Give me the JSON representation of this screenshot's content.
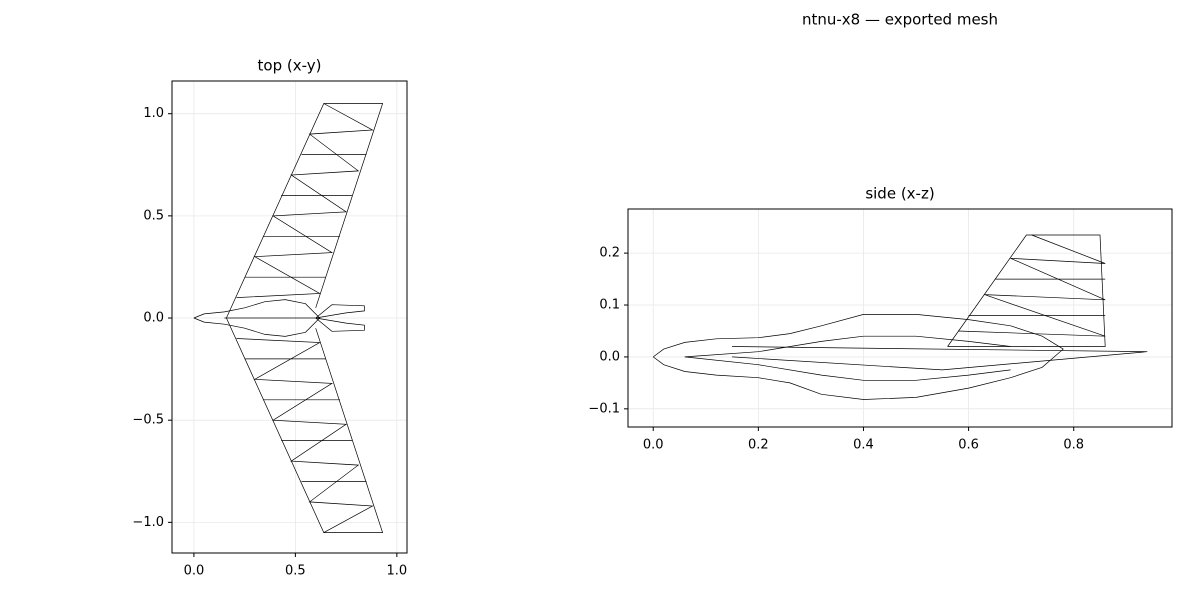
{
  "title": "ntnu-x8 — exported mesh",
  "chart_data": [
    {
      "type": "wireframe",
      "title": "top (x-y)",
      "grid": true,
      "color": "#000000",
      "xlim": [
        -0.108,
        1.05
      ],
      "ylim": [
        -1.15,
        1.16
      ],
      "xticks": [
        {
          "value": 0,
          "label": "0.0"
        },
        {
          "value": 0.5,
          "label": "0.5"
        },
        {
          "value": 1,
          "label": "1.0"
        }
      ],
      "yticks": [
        {
          "value": -1,
          "label": "−1.0"
        },
        {
          "value": -0.5,
          "label": "−0.5"
        },
        {
          "value": 0,
          "label": "0.0"
        },
        {
          "value": 0.5,
          "label": "0.5"
        },
        {
          "value": 1,
          "label": "1.0"
        }
      ],
      "lines": [
        {
          "x": [
            0.16,
            0.64,
            0.93,
            0.6
          ],
          "y": [
            0.0,
            1.05,
            1.05,
            0.05
          ]
        },
        {
          "x": [
            0.16,
            0.64,
            0.93,
            0.6
          ],
          "y": [
            0.0,
            -1.05,
            -1.05,
            -0.05
          ]
        },
        {
          "x": [
            0.25,
            0.65
          ],
          "y": [
            0.2,
            0.2
          ]
        },
        {
          "x": [
            0.34,
            0.72
          ],
          "y": [
            0.4,
            0.4
          ]
        },
        {
          "x": [
            0.43,
            0.78
          ],
          "y": [
            0.6,
            0.6
          ]
        },
        {
          "x": [
            0.53,
            0.85
          ],
          "y": [
            0.8,
            0.8
          ]
        },
        {
          "x": [
            0.25,
            0.65
          ],
          "y": [
            -0.2,
            -0.2
          ]
        },
        {
          "x": [
            0.34,
            0.72
          ],
          "y": [
            -0.4,
            -0.4
          ]
        },
        {
          "x": [
            0.43,
            0.78
          ],
          "y": [
            -0.6,
            -0.6
          ]
        },
        {
          "x": [
            0.53,
            0.85
          ],
          "y": [
            -0.8,
            -0.8
          ]
        },
        {
          "x": [
            0.21,
            0.62,
            0.3,
            0.68,
            0.39,
            0.75,
            0.48,
            0.81,
            0.57,
            0.88,
            0.64
          ],
          "y": [
            0.1,
            0.12,
            0.3,
            0.32,
            0.5,
            0.52,
            0.7,
            0.72,
            0.9,
            0.92,
            1.05
          ]
        },
        {
          "x": [
            0.21,
            0.62,
            0.3,
            0.68,
            0.39,
            0.75,
            0.48,
            0.81,
            0.57,
            0.88,
            0.64
          ],
          "y": [
            -0.1,
            -0.12,
            -0.3,
            -0.32,
            -0.5,
            -0.52,
            -0.7,
            -0.72,
            -0.9,
            -0.92,
            -1.05
          ]
        },
        {
          "x": [
            0,
            0.05,
            0.15,
            0.25,
            0.35,
            0.45,
            0.55,
            0.62,
            0.55,
            0.45,
            0.35,
            0.25,
            0.15,
            0.05,
            0
          ],
          "y": [
            0,
            0.02,
            0.03,
            0.05,
            0.08,
            0.09,
            0.07,
            0.0,
            -0.07,
            -0.09,
            -0.08,
            -0.05,
            -0.03,
            -0.02,
            0
          ]
        },
        {
          "x": [
            0.15,
            0.62
          ],
          "y": [
            0.0,
            0.0
          ]
        },
        {
          "x": [
            0.6,
            0.68,
            0.84,
            0.84,
            0.75,
            0.6
          ],
          "y": [
            0.0,
            0.065,
            0.06,
            0.035,
            0.025,
            0.0
          ]
        },
        {
          "x": [
            0.6,
            0.68,
            0.84,
            0.84,
            0.75,
            0.6
          ],
          "y": [
            0.0,
            -0.065,
            -0.06,
            -0.035,
            -0.025,
            0.0
          ]
        }
      ]
    },
    {
      "type": "wireframe",
      "title": "side (x-z)",
      "grid": true,
      "color": "#000000",
      "xlim": [
        -0.048,
        0.987
      ],
      "ylim": [
        -0.135,
        0.285
      ],
      "xticks": [
        {
          "value": 0,
          "label": "0.0"
        },
        {
          "value": 0.2,
          "label": "0.2"
        },
        {
          "value": 0.4,
          "label": "0.4"
        },
        {
          "value": 0.6,
          "label": "0.6"
        },
        {
          "value": 0.8,
          "label": "0.8"
        }
      ],
      "yticks": [
        {
          "value": -0.1,
          "label": "−0.1"
        },
        {
          "value": 0,
          "label": "0.0"
        },
        {
          "value": 0.1,
          "label": "0.1"
        },
        {
          "value": 0.2,
          "label": "0.2"
        }
      ],
      "lines": [
        {
          "x": [
            0,
            0.02,
            0.06,
            0.12,
            0.2,
            0.26,
            0.32,
            0.4,
            0.5,
            0.6,
            0.68,
            0.74,
            0.78,
            0.74,
            0.68,
            0.6,
            0.5,
            0.4,
            0.32,
            0.26,
            0.2,
            0.12,
            0.06,
            0.02,
            0
          ],
          "y": [
            0,
            0.015,
            0.028,
            0.035,
            0.037,
            0.045,
            0.06,
            0.082,
            0.082,
            0.072,
            0.06,
            0.04,
            0.015,
            -0.02,
            -0.04,
            -0.06,
            -0.078,
            -0.082,
            -0.072,
            -0.05,
            -0.04,
            -0.035,
            -0.028,
            -0.015,
            0
          ]
        },
        {
          "x": [
            0.56,
            0.71,
            0.85,
            0.86,
            0.56
          ],
          "y": [
            0.02,
            0.235,
            0.235,
            0.02,
            0.02
          ]
        },
        {
          "x": [
            0.15,
            0.94,
            0.55,
            0.15
          ],
          "y": [
            0.02,
            0.01,
            -0.025,
            0.0
          ]
        },
        {
          "x": [
            0.6,
            0.86
          ],
          "y": [
            0.08,
            0.08
          ]
        },
        {
          "x": [
            0.65,
            0.86
          ],
          "y": [
            0.15,
            0.15
          ]
        },
        {
          "x": [
            0.58,
            0.86,
            0.63,
            0.86,
            0.68,
            0.86,
            0.72
          ],
          "y": [
            0.05,
            0.04,
            0.12,
            0.11,
            0.19,
            0.18,
            0.235
          ]
        },
        {
          "x": [
            0.06,
            0.2,
            0.32,
            0.4,
            0.5,
            0.6,
            0.68
          ],
          "y": [
            0.0,
            0.01,
            0.03,
            0.04,
            0.04,
            0.03,
            0.02
          ]
        },
        {
          "x": [
            0.06,
            0.2,
            0.32,
            0.4,
            0.5,
            0.6,
            0.68
          ],
          "y": [
            0.0,
            -0.015,
            -0.035,
            -0.045,
            -0.045,
            -0.035,
            -0.025
          ]
        }
      ]
    }
  ]
}
